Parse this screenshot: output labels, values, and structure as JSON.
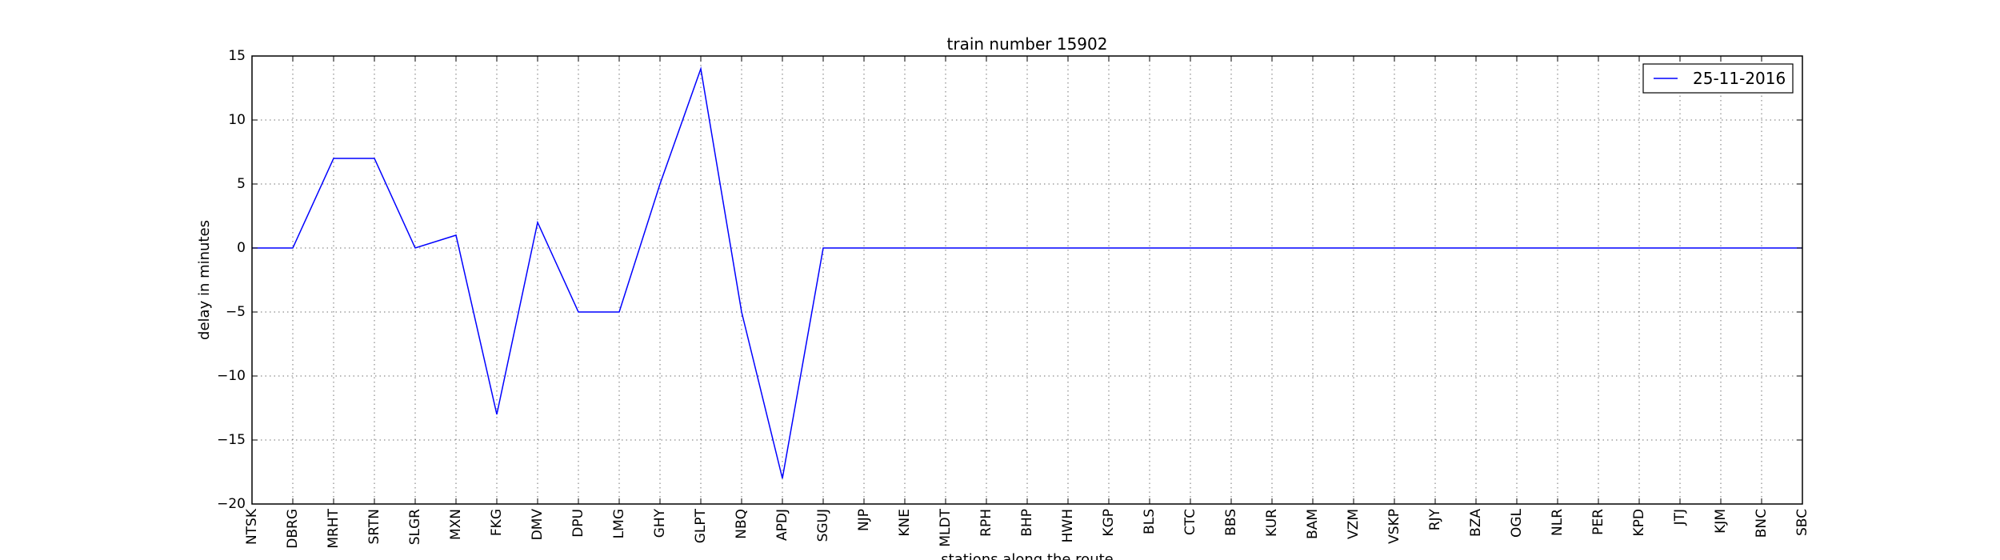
{
  "chart_data": {
    "type": "line",
    "title": "train number 15902",
    "xlabel": "stations along the route",
    "ylabel": "delay in minutes",
    "categories": [
      "NTSK",
      "DBRG",
      "MRHT",
      "SRTN",
      "SLGR",
      "MXN",
      "FKG",
      "DMV",
      "DPU",
      "LMG",
      "GHY",
      "GLPT",
      "NBQ",
      "APDJ",
      "SGUJ",
      "NJP",
      "KNE",
      "MLDT",
      "RPH",
      "BHP",
      "HWH",
      "KGP",
      "BLS",
      "CTC",
      "BBS",
      "KUR",
      "BAM",
      "VZM",
      "VSKP",
      "RJY",
      "BZA",
      "OGL",
      "NLR",
      "PER",
      "KPD",
      "JTJ",
      "KJM",
      "BNC",
      "SBC"
    ],
    "series": [
      {
        "name": "25-11-2016",
        "color": "#0000ff",
        "values": [
          0,
          0,
          7,
          7,
          0,
          1,
          -13,
          2,
          -5,
          -5,
          5,
          14,
          -5,
          -18,
          0,
          0,
          0,
          0,
          0,
          0,
          0,
          0,
          0,
          0,
          0,
          0,
          0,
          0,
          0,
          0,
          0,
          0,
          0,
          0,
          0,
          0,
          0,
          0,
          0
        ]
      }
    ],
    "ylim": [
      -20,
      15
    ],
    "yticks": [
      -20,
      -15,
      -10,
      -5,
      0,
      5,
      10,
      15
    ],
    "ytick_labels": [
      "−20",
      "−15",
      "−10",
      "−5",
      "0",
      "5",
      "10",
      "15"
    ],
    "grid": true,
    "legend_position": "top-right"
  }
}
